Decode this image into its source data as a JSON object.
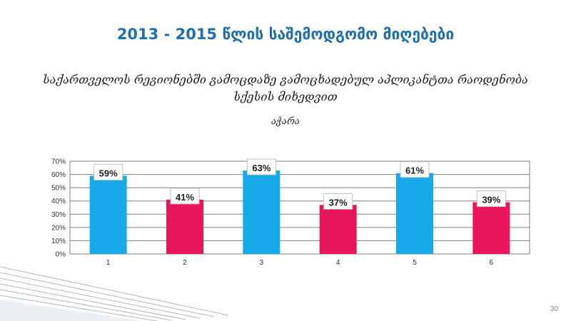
{
  "slide": {
    "title": "2013 - 2015 წლის საშემოდგომო მიღებები",
    "subtitle": "საქართველოს რეგიონებში გამოცდაზე გამოცხადებულ აპლიკანტთა რაოდენობა სქესის მიხედვით",
    "region": "აჭარა",
    "page_number": "30"
  },
  "colors": {
    "title": "#1f6fb0",
    "blue_bar": "#17a9e8",
    "pink_bar": "#e8175d",
    "grid": "#808080"
  },
  "chart_data": {
    "type": "bar",
    "categories": [
      "1",
      "2",
      "3",
      "4",
      "5",
      "6"
    ],
    "values": [
      59,
      41,
      63,
      37,
      61,
      39
    ],
    "value_labels": [
      "59%",
      "41%",
      "63%",
      "37%",
      "61%",
      "39%"
    ],
    "bar_colors": [
      "#17a9e8",
      "#e8175d",
      "#17a9e8",
      "#e8175d",
      "#17a9e8",
      "#e8175d"
    ],
    "y_ticks": [
      "0%",
      "10%",
      "20%",
      "30%",
      "40%",
      "50%",
      "60%",
      "70%"
    ],
    "ylim": [
      0,
      70
    ],
    "grid": true,
    "legend": false,
    "title": "",
    "xlabel": "",
    "ylabel": ""
  }
}
